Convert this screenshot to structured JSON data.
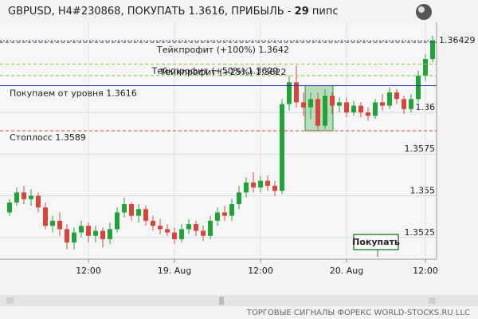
{
  "chart_data": {
    "type": "candlestick",
    "title": "GBPUSD, H4#230868, ПОКУПАТЬ 1.3616, ПРИБЫЛЬ - ",
    "profit": "29",
    "profit_unit": "пипс",
    "footer": "ТОРГОВЫЕ СИГНАЛЫ ФОРЕКС WORLD-STOCKS.RU LLC",
    "button": "Покупать",
    "categories": [
      null,
      null,
      null,
      null,
      null,
      null,
      null,
      null,
      null,
      null,
      null,
      "12:00",
      null,
      null,
      null,
      null,
      null,
      null,
      null,
      null,
      null,
      null,
      null,
      "19. Aug",
      null,
      null,
      null,
      null,
      null,
      null,
      null,
      null,
      null,
      null,
      null,
      "12:00",
      null,
      null,
      null,
      null,
      null,
      null,
      null,
      null,
      null,
      null,
      null,
      "20. Aug",
      null,
      null,
      null,
      null,
      null,
      null,
      null,
      null,
      null,
      null,
      "12:00",
      null
    ],
    "open": [
      1.354,
      1.3546,
      1.3552,
      1.3548,
      1.355,
      1.3543,
      1.3532,
      1.3535,
      1.353,
      1.3522,
      1.3528,
      1.3532,
      1.3526,
      1.3529,
      1.3524,
      1.353,
      1.354,
      1.3545,
      1.3538,
      1.3542,
      1.3535,
      1.3532,
      1.353,
      1.3528,
      1.3524,
      1.353,
      1.3533,
      1.3529,
      1.3526,
      1.3535,
      1.354,
      1.3538,
      1.3545,
      1.3552,
      1.3558,
      1.3555,
      1.3559,
      1.3556,
      1.3553,
      1.3605,
      1.3618,
      1.3606,
      1.3603,
      1.3608,
      1.3592,
      1.361,
      1.3604,
      1.3606,
      1.36,
      1.3604,
      1.36,
      1.3598,
      1.3606,
      1.3604,
      1.3612,
      1.3608,
      1.3602,
      1.3608,
      1.3622,
      1.3632
    ],
    "high": [
      1.3548,
      1.3555,
      1.3556,
      1.3554,
      1.3552,
      1.3546,
      1.3538,
      1.354,
      1.3533,
      1.3531,
      1.3535,
      1.3534,
      1.3532,
      1.3531,
      1.3534,
      1.3543,
      1.3549,
      1.3546,
      1.3545,
      1.3544,
      1.3538,
      1.3536,
      1.3533,
      1.3531,
      1.3533,
      1.3536,
      1.3535,
      1.3532,
      1.3538,
      1.3543,
      1.3544,
      1.3548,
      1.3556,
      1.3561,
      1.3564,
      1.3562,
      1.3562,
      1.3559,
      1.3608,
      1.3622,
      1.3628,
      1.3612,
      1.3612,
      1.3612,
      1.3614,
      1.3612,
      1.3609,
      1.3609,
      1.3607,
      1.3606,
      1.3603,
      1.3608,
      1.3611,
      1.3615,
      1.3614,
      1.361,
      1.3611,
      1.3625,
      1.3635,
      1.3646
    ],
    "low": [
      1.3538,
      1.3544,
      1.3545,
      1.3544,
      1.354,
      1.353,
      1.3528,
      1.3526,
      1.3518,
      1.3518,
      1.3525,
      1.3522,
      1.3522,
      1.3519,
      1.3521,
      1.3528,
      1.3537,
      1.3535,
      1.3534,
      1.3532,
      1.3529,
      1.3527,
      1.3526,
      1.3521,
      1.3522,
      1.3527,
      1.3526,
      1.3523,
      1.3524,
      1.3532,
      1.3535,
      1.3535,
      1.3542,
      1.3549,
      1.3552,
      1.3552,
      1.3553,
      1.355,
      1.3551,
      1.3601,
      1.3603,
      1.3598,
      1.3596,
      1.3589,
      1.359,
      1.3599,
      1.36,
      1.3597,
      1.3598,
      1.3597,
      1.3595,
      1.3596,
      1.3601,
      1.3602,
      1.3605,
      1.3599,
      1.36,
      1.3606,
      1.3619,
      1.363
    ],
    "close": [
      1.3546,
      1.3552,
      1.3548,
      1.355,
      1.3543,
      1.3532,
      1.3535,
      1.353,
      1.3522,
      1.3528,
      1.3532,
      1.3526,
      1.3529,
      1.3524,
      1.353,
      1.354,
      1.3545,
      1.3538,
      1.3542,
      1.3535,
      1.3532,
      1.353,
      1.3528,
      1.3524,
      1.353,
      1.3533,
      1.3529,
      1.3526,
      1.3535,
      1.354,
      1.3538,
      1.3545,
      1.3552,
      1.3558,
      1.3555,
      1.3559,
      1.3556,
      1.3553,
      1.3605,
      1.3618,
      1.3606,
      1.3603,
      1.3608,
      1.3592,
      1.361,
      1.3604,
      1.3606,
      1.36,
      1.3604,
      1.36,
      1.3598,
      1.3606,
      1.3604,
      1.3612,
      1.3608,
      1.3602,
      1.3608,
      1.3622,
      1.3632,
      1.3643
    ],
    "up_color": "#22a33a",
    "down_color": "#d9453d",
    "ylim": [
      1.3512,
      1.3654
    ],
    "yticks": [
      1.3525,
      1.355,
      1.3575,
      1.36
    ],
    "grid": true,
    "last_price": 1.36429,
    "last_price_label": "1.36429",
    "levels": [
      {
        "label": "Тейкпрофит (+100%) 1.3642",
        "value": 1.3642,
        "color": "#333366",
        "dash": true
      },
      {
        "label": "Тейкпрофит (+50%) 1.3629",
        "value": 1.3629,
        "color": "#8cc63f",
        "dash": true
      },
      {
        "label": "Тейкпрофит (+25%) 1.3622",
        "value": 1.3622,
        "color": "#8cc63f",
        "dash": true
      },
      {
        "label": "Покупаем от уровня 1.3616",
        "value": 1.3616,
        "color": "#1a1aa6",
        "dash": false
      },
      {
        "label": "Стоплосс 1.3589",
        "value": 1.3589,
        "color": "#d9453d",
        "dash": true
      }
    ]
  }
}
